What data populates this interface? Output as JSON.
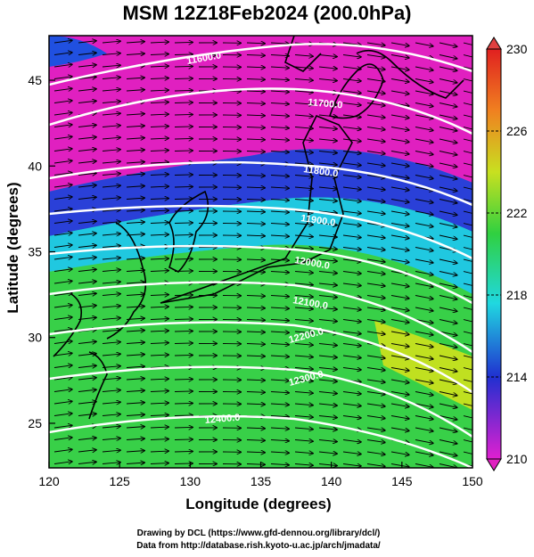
{
  "title": "MSM 12Z18Feb2024 (200.0hPa)",
  "x_axis": {
    "label": "Longitude (degrees)",
    "ticks": [
      "120",
      "125",
      "130",
      "135",
      "140",
      "145",
      "150"
    ],
    "range": [
      120,
      150
    ]
  },
  "y_axis": {
    "label": "Latitude  (degrees)",
    "ticks": [
      "25",
      "30",
      "35",
      "40",
      "45"
    ],
    "range": [
      22.4,
      47.6
    ]
  },
  "colorbar": {
    "labels": [
      "230",
      "226",
      "222",
      "218",
      "214",
      "210"
    ],
    "range": [
      210,
      230
    ]
  },
  "contours": [
    {
      "label": "11600.0"
    },
    {
      "label": "11700.0"
    },
    {
      "label": "11800.0"
    },
    {
      "label": "11900.0"
    },
    {
      "label": "12000.0"
    },
    {
      "label": "12100.0"
    },
    {
      "label": "12200.0"
    },
    {
      "label": "12300.0"
    },
    {
      "label": "12400.0"
    }
  ],
  "credits": {
    "line1": "Drawing by DCL (https://www.gfd-dennou.org/library/dcl/)",
    "line2": "Data from http://database.rish.kyoto-u.ac.jp/arch/jmadata/"
  },
  "colors": {
    "magenta": "#e020c0",
    "blue": "#2040e0",
    "cyan": "#20d8d0",
    "green": "#40d040",
    "yellow": "#d8e020",
    "red": "#e02020"
  }
}
